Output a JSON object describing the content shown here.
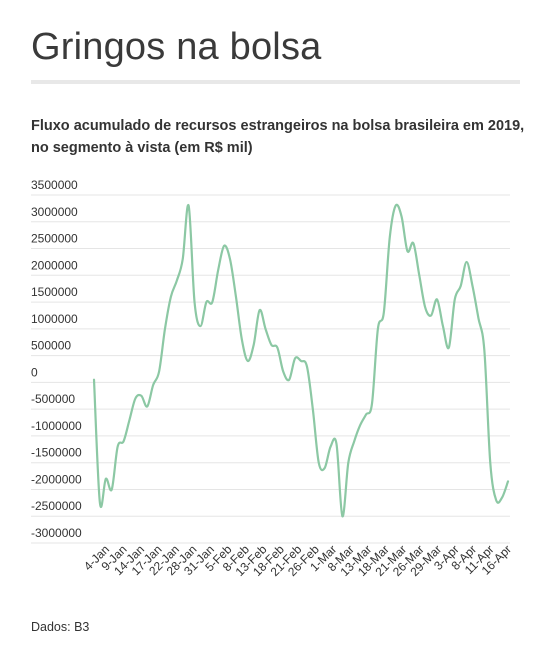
{
  "header": {
    "title": "Gringos na bolsa",
    "source": "Dados: B3"
  },
  "colors": {
    "line": "#8cc8a4",
    "grid": "#e5e5e5",
    "text": "#333333",
    "rule": "#e8e8e8"
  },
  "chart_data": {
    "type": "line",
    "title": "Fluxo acumulado de recursos estrangeiros na bolsa brasileira em 2019, no segmento à vista (em R$ mil)",
    "xlabel": "",
    "ylabel": "",
    "ylim": [
      -3000000,
      3500000
    ],
    "grid": true,
    "legend": "none",
    "yticks": [
      3500000,
      3000000,
      2500000,
      2000000,
      1500000,
      1000000,
      500000,
      0,
      -500000,
      -1000000,
      -1500000,
      -2000000,
      -2500000,
      -3000000
    ],
    "ytick_labels": [
      "3500000",
      "3000000",
      "2500000",
      "2000000",
      "1500000",
      "1000000",
      "500000",
      "0",
      "-500000",
      "-1000000",
      "-1500000",
      "-2000000",
      "-2500000",
      "-3000000"
    ],
    "xtick_labels": [
      "4-Jan",
      "9-Jan",
      "14-Jan",
      "17-Jan",
      "22-Jan",
      "28-Jan",
      "31-Jan",
      "5-Feb",
      "8-Feb",
      "13-Feb",
      "18-Feb",
      "21-Feb",
      "26-Feb",
      "1-Mar",
      "8-Mar",
      "13-Mar",
      "18-Mar",
      "21-Mar",
      "26-Mar",
      "29-Mar",
      "3-Apr",
      "8-Apr",
      "11-Apr",
      "16-Apr"
    ],
    "series": [
      {
        "values": [
          50000,
          -2250000,
          -1800000,
          -2000000,
          -1200000,
          -1100000,
          -700000,
          -300000,
          -250000,
          -450000,
          -50000,
          200000,
          1000000,
          1600000,
          1900000,
          2300000,
          3300000,
          1500000,
          1050000,
          1500000,
          1500000,
          2100000,
          2550000,
          2300000,
          1600000,
          800000,
          400000,
          700000,
          1350000,
          1000000,
          700000,
          650000,
          200000,
          50000,
          450000,
          400000,
          300000,
          -500000,
          -1500000,
          -1600000,
          -1200000,
          -1150000,
          -2500000,
          -1500000,
          -1100000,
          -800000,
          -600000,
          -400000,
          1000000,
          1300000,
          2700000,
          3300000,
          3100000,
          2450000,
          2600000,
          2000000,
          1400000,
          1250000,
          1550000,
          1050000,
          650000,
          1550000,
          1800000,
          2250000,
          1800000,
          1200000,
          600000,
          -1500000,
          -2200000,
          -2150000,
          -1850000
        ]
      }
    ]
  }
}
